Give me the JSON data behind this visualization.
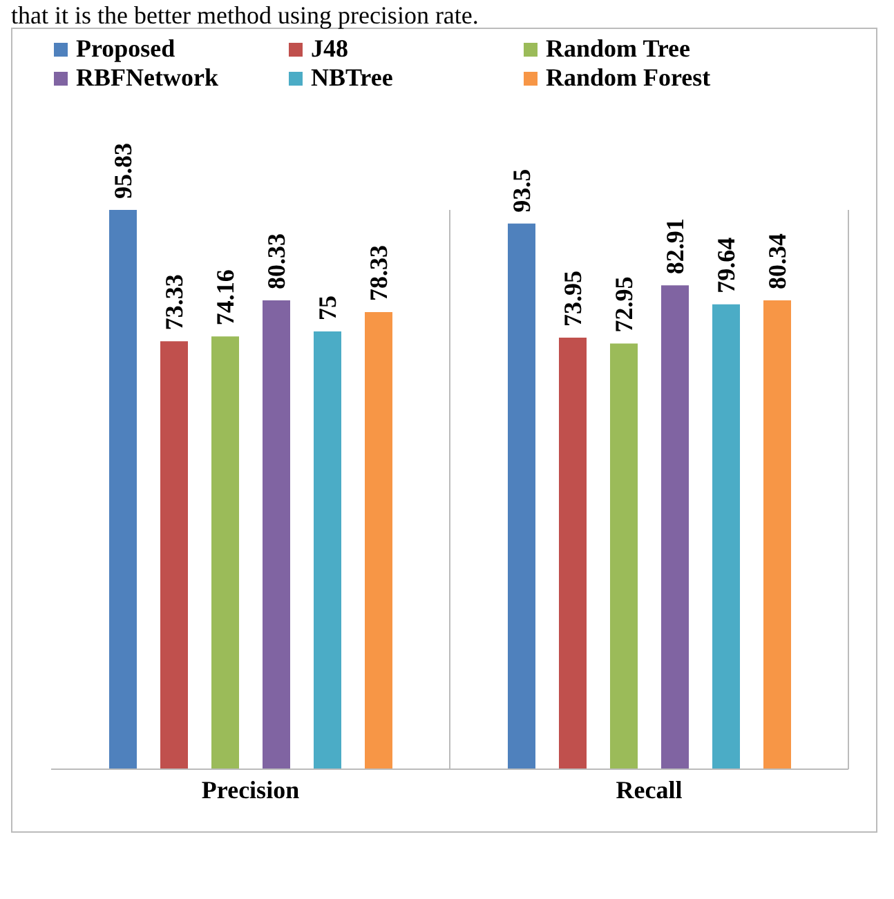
{
  "chart_data": {
    "type": "bar",
    "annotations": [
      "that it is the better method using precision rate."
    ],
    "categories": [
      "Precision",
      "Recall"
    ],
    "series": [
      {
        "name": "Proposed",
        "color": "#4f81bd",
        "values": [
          95.83,
          93.5
        ]
      },
      {
        "name": "J48",
        "color": "#c0504d",
        "values": [
          73.33,
          73.95
        ]
      },
      {
        "name": "Random Tree",
        "color": "#9bbb59",
        "values": [
          74.16,
          72.95
        ]
      },
      {
        "name": "RBFNetwork",
        "color": "#8064a2",
        "values": [
          80.33,
          82.91
        ]
      },
      {
        "name": "NBTree",
        "color": "#4bacc6",
        "values": [
          75,
          79.64
        ]
      },
      {
        "name": "Random Forest",
        "color": "#f79646",
        "values": [
          78.33,
          80.34
        ]
      }
    ],
    "data_labels": true,
    "grid": "x",
    "legend": "top"
  }
}
